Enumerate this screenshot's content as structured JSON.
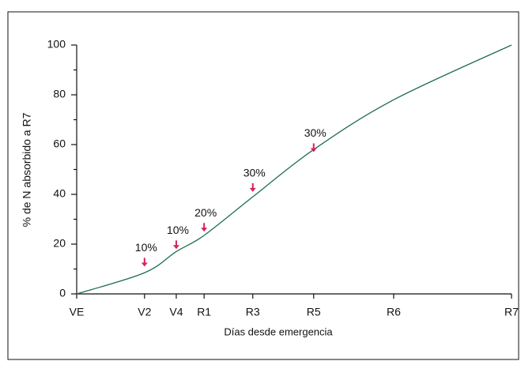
{
  "chart_data": {
    "type": "line",
    "xlabel": "Días desde emergencia",
    "ylabel": "% de N absorbido a R7",
    "categories": [
      "VE",
      "V2",
      "V4",
      "R1",
      "R3",
      "R5",
      "R6",
      "R7"
    ],
    "series": [
      {
        "name": "N absorbido",
        "color": "#1f6e4e",
        "values": [
          0,
          8.5,
          17,
          23.5,
          39,
          58,
          78,
          100
        ]
      }
    ],
    "ylim": [
      0,
      100
    ],
    "yticks": [
      0,
      20,
      40,
      60,
      80,
      100
    ],
    "annotations": [
      {
        "label": "10%",
        "x": "V2",
        "y": 11
      },
      {
        "label": "10%",
        "x": "V4",
        "y": 18
      },
      {
        "label": "20%",
        "x": "R1",
        "y": 25
      },
      {
        "label": "30%",
        "x": "R3",
        "y": 41
      },
      {
        "label": "30%",
        "x": "R5",
        "y": 57
      }
    ],
    "annotation_color": "#d4245a"
  }
}
